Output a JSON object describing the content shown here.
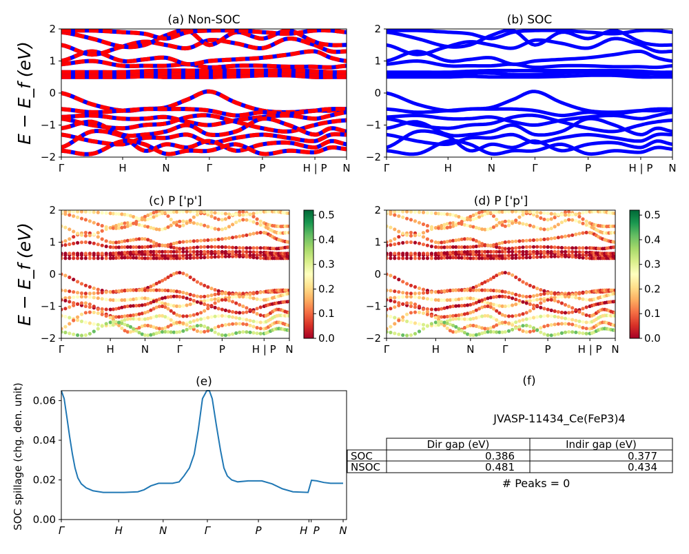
{
  "chart_data": [
    {
      "type": "line",
      "panel": "a",
      "title": "(a) Non-SOC",
      "ylabel": "E − E_f (eV)",
      "ylim": [
        -2,
        2
      ],
      "yticks": [
        "−2",
        "−1",
        "0",
        "1",
        "2"
      ],
      "xticks": [
        "Γ",
        "H",
        "N",
        "Γ",
        "P",
        "H | P",
        "N"
      ],
      "colors": [
        "#ff0000",
        "#0000ff"
      ]
    },
    {
      "type": "line",
      "panel": "b",
      "title": "(b) SOC",
      "ylim": [
        -2,
        2
      ],
      "yticks": [
        "−2",
        "−1",
        "0",
        "1",
        "2"
      ],
      "xticks": [
        "Γ",
        "H",
        "N",
        "Γ",
        "P",
        "H | P",
        "N"
      ],
      "colors": [
        "#0000ff"
      ]
    },
    {
      "type": "scatter",
      "panel": "c",
      "title": "(c)  P ['p']",
      "ylabel": "E − E_f (eV)",
      "ylim": [
        -2,
        2
      ],
      "yticks": [
        "−2",
        "−1",
        "0",
        "1",
        "2"
      ],
      "xticks": [
        "Γ",
        "H",
        "N",
        "Γ",
        "P",
        "H | P",
        "N"
      ],
      "colorbar": {
        "range": [
          0,
          0.52
        ],
        "ticks": [
          "0.0",
          "0.1",
          "0.2",
          "0.3",
          "0.4",
          "0.5"
        ],
        "colormap": "RdYlGn"
      }
    },
    {
      "type": "scatter",
      "panel": "d",
      "title": "(d) P ['p']",
      "ylim": [
        -2,
        2
      ],
      "yticks": [
        "−2",
        "−1",
        "0",
        "1",
        "2"
      ],
      "xticks": [
        "Γ",
        "H",
        "N",
        "Γ",
        "P",
        "H | P",
        "N"
      ],
      "colorbar": {
        "range": [
          0,
          0.52
        ],
        "ticks": [
          "0.0",
          "0.1",
          "0.2",
          "0.3",
          "0.4",
          "0.5"
        ],
        "colormap": "RdYlGn"
      }
    },
    {
      "type": "line",
      "panel": "e",
      "title": "(e)",
      "ylabel": "SOC spillage (chg. den. unit)",
      "ylim": [
        0,
        0.065
      ],
      "xlim": [
        0,
        1
      ],
      "yticks": [
        "0.00",
        "0.02",
        "0.04",
        "0.06"
      ],
      "xticks": [
        "Γ",
        "H",
        "N",
        "Γ",
        "P",
        "H",
        "P",
        "N"
      ],
      "xtick_positions": [
        0,
        0.201,
        0.357,
        0.512,
        0.691,
        0.868,
        0.876,
        0.988
      ],
      "color": "#1f77b4",
      "x": [
        0,
        0.01,
        0.019,
        0.029,
        0.039,
        0.048,
        0.058,
        0.07,
        0.087,
        0.111,
        0.147,
        0.22,
        0.268,
        0.29,
        0.314,
        0.341,
        0.39,
        0.413,
        0.43,
        0.449,
        0.466,
        0.48,
        0.495,
        0.51,
        0.519,
        0.529,
        0.543,
        0.558,
        0.57,
        0.582,
        0.597,
        0.618,
        0.655,
        0.703,
        0.739,
        0.775,
        0.812,
        0.865,
        0.877,
        0.896,
        0.92,
        0.944,
        0.988
      ],
      "y": [
        0.065,
        0.061,
        0.052,
        0.042,
        0.033,
        0.026,
        0.021,
        0.018,
        0.016,
        0.0145,
        0.0137,
        0.0137,
        0.014,
        0.015,
        0.017,
        0.0183,
        0.0183,
        0.019,
        0.022,
        0.026,
        0.033,
        0.045,
        0.061,
        0.065,
        0.065,
        0.061,
        0.048,
        0.035,
        0.026,
        0.022,
        0.02,
        0.019,
        0.0195,
        0.0195,
        0.018,
        0.0155,
        0.014,
        0.0137,
        0.0198,
        0.0195,
        0.0187,
        0.0183,
        0.0183
      ]
    }
  ],
  "bands": {
    "k": [
      0,
      0.107,
      0.215,
      0.291,
      0.367,
      0.443,
      0.519,
      0.612,
      0.705,
      0.797,
      0.889,
      0.945,
      1
    ],
    "lines": [
      {
        "e": [
          0,
          -0.35,
          -0.55,
          -0.5,
          -0.45,
          -0.2,
          0.05,
          -0.3,
          -0.55,
          -0.6,
          -0.55,
          -0.55,
          -0.5
        ],
        "w": 0.08
      },
      {
        "e": [
          -0.5,
          -0.6,
          -0.55,
          -0.5,
          -0.5,
          -0.5,
          -0.55,
          -0.7,
          -0.6,
          -0.65,
          -0.55,
          -0.5,
          -0.5
        ],
        "w": 0.12
      },
      {
        "e": [
          -0.75,
          -0.7,
          -0.8,
          -0.8,
          -0.75,
          -0.9,
          -1.0,
          -0.85,
          -0.75,
          -0.7,
          -0.8,
          -0.7,
          -0.6
        ],
        "w": 0.2
      },
      {
        "e": [
          -0.8,
          -1.0,
          -1.1,
          -1.0,
          -0.95,
          -0.75,
          -0.7,
          -0.9,
          -1.1,
          -1.2,
          -1.0,
          -0.9,
          -0.85
        ],
        "w": 0.05
      },
      {
        "e": [
          -1.1,
          -0.9,
          -1.3,
          -1.3,
          -1.2,
          -1.0,
          -1.3,
          -1.2,
          -0.8,
          -1.0,
          -1.3,
          -1.1,
          -1.2
        ],
        "w": 0.1
      },
      {
        "e": [
          -1.3,
          -1.5,
          -1.6,
          -1.4,
          -1.4,
          -1.3,
          -1.55,
          -1.4,
          -1.3,
          -1.4,
          -1.5,
          -1.3,
          -1.3
        ],
        "w": 0.25
      },
      {
        "e": [
          -1.7,
          -1.2,
          -1.35,
          -1.8,
          -1.6,
          -1.7,
          -1.5,
          -1.8,
          -1.6,
          -1.55,
          -1.7,
          -1.5,
          -1.6
        ],
        "w": 0.15
      },
      {
        "e": [
          -1.8,
          -1.9,
          -1.5,
          -1.6,
          -1.9,
          -1.8,
          -1.8,
          -1.6,
          -1.9,
          -1.8,
          -1.85,
          -1.7,
          -1.75
        ],
        "w": 0.35
      },
      {
        "e": [
          0.5,
          0.5,
          0.5,
          0.52,
          0.5,
          0.5,
          0.5,
          0.52,
          0.55,
          0.55,
          0.5,
          0.5,
          0.5
        ],
        "w": 0.03
      },
      {
        "e": [
          0.6,
          0.6,
          0.6,
          0.62,
          0.62,
          0.58,
          0.58,
          0.62,
          0.65,
          0.6,
          0.6,
          0.6,
          0.55
        ],
        "w": 0.03
      },
      {
        "e": [
          0.65,
          0.65,
          0.65,
          0.68,
          0.7,
          0.7,
          0.7,
          0.7,
          0.7,
          0.7,
          0.68,
          0.65,
          0.65
        ],
        "w": 0.04
      },
      {
        "e": [
          0.9,
          1.0,
          0.85,
          0.85,
          0.85,
          0.9,
          0.8,
          0.85,
          0.85,
          0.82,
          0.82,
          0.8,
          0.85
        ],
        "w": 0.06
      },
      {
        "e": [
          1.0,
          1.3,
          1.0,
          1.05,
          1.1,
          0.9,
          1.0,
          1.05,
          1.1,
          1.2,
          1.3,
          1.1,
          1.0
        ],
        "w": 0.12
      },
      {
        "e": [
          1.5,
          1.2,
          1.45,
          1.6,
          1.5,
          1.4,
          1.65,
          1.55,
          1.4,
          1.7,
          1.5,
          1.3,
          1.3
        ],
        "w": 0.18
      },
      {
        "e": [
          1.9,
          1.7,
          1.45,
          1.5,
          1.8,
          1.95,
          1.5,
          1.9,
          1.7,
          1.95,
          1.6,
          1.5,
          1.5
        ],
        "w": 0.14
      },
      {
        "e": [
          1.95,
          1.95,
          1.9,
          1.85,
          1.7,
          1.9,
          1.95,
          1.95,
          1.9,
          1.85,
          1.95,
          1.95,
          1.9
        ],
        "w": 0.22
      }
    ]
  },
  "panel_f": {
    "title": "(f)",
    "material": "JVASP-11434_Ce(FeP3)4",
    "table": {
      "columns": [
        "Dir gap (eV)",
        "Indir gap (eV)"
      ],
      "rows": [
        {
          "label": "SOC",
          "values": [
            "0.386",
            "0.377"
          ]
        },
        {
          "label": "NSOC",
          "values": [
            "0.481",
            "0.434"
          ]
        }
      ]
    },
    "peaks": "# Peaks = 0"
  }
}
